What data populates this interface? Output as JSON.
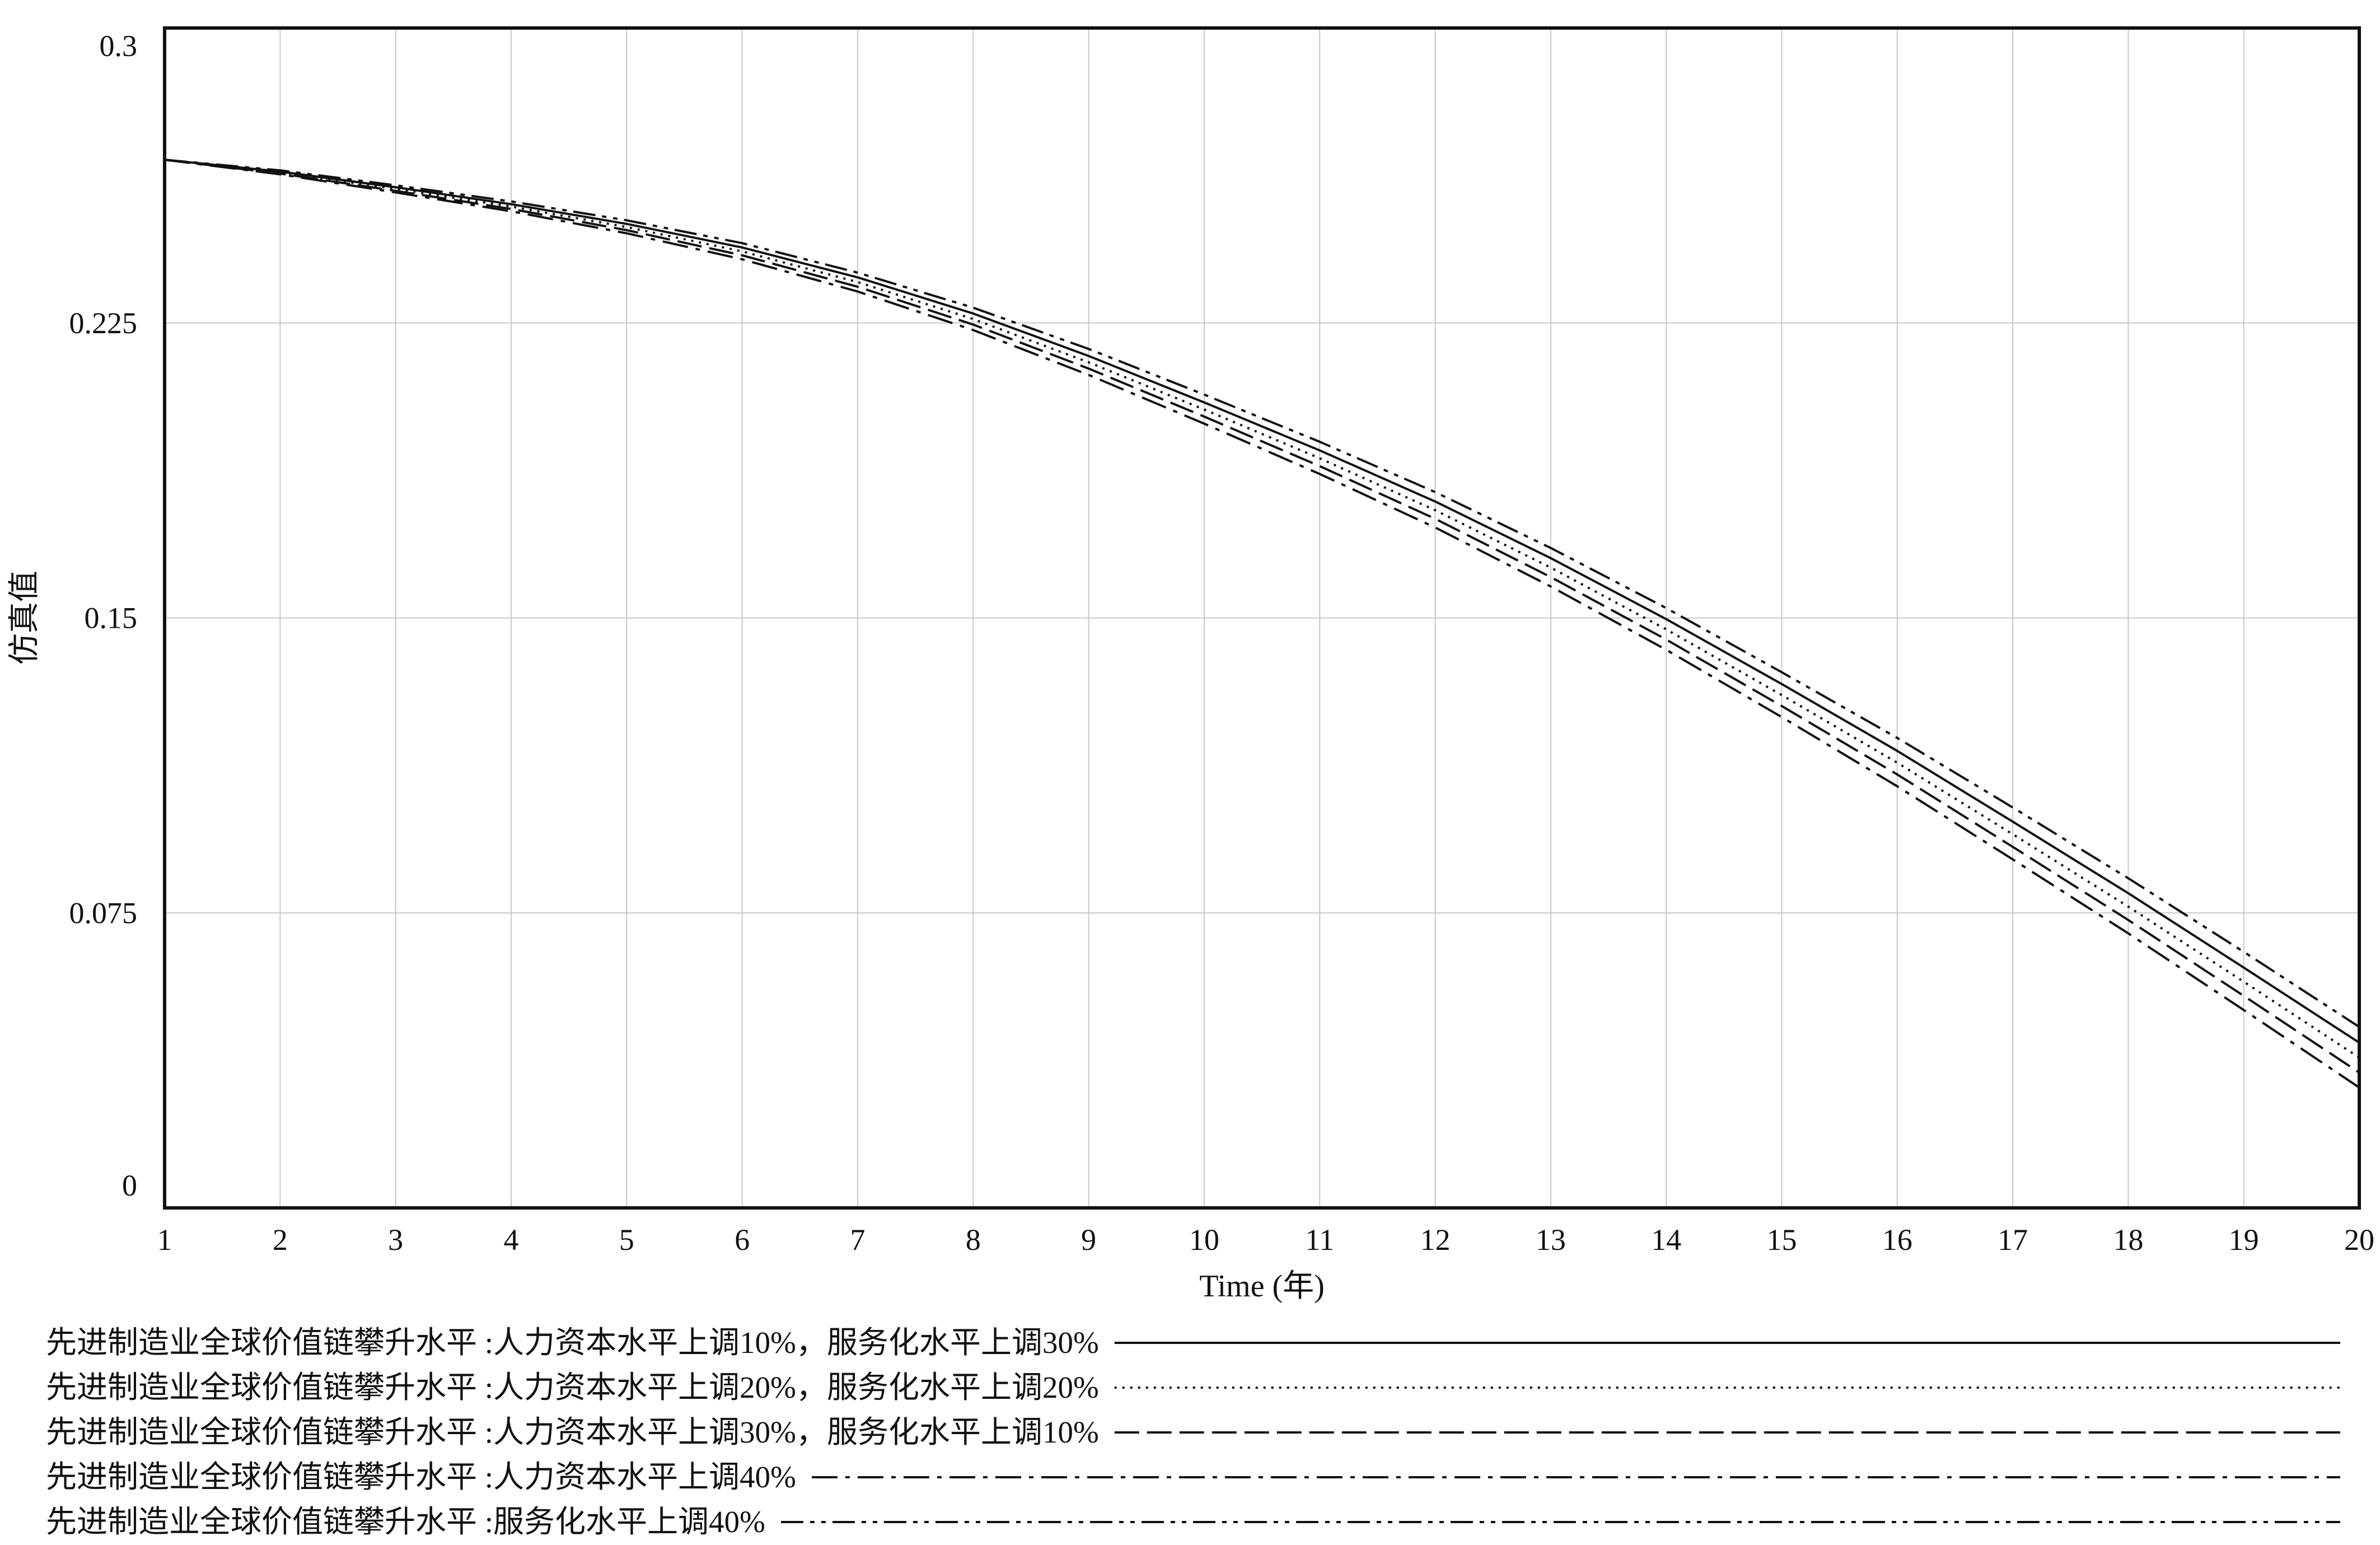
{
  "chart_data": {
    "type": "line",
    "title": "",
    "xlabel": "Time (年)",
    "ylabel": "仿真值",
    "xlim": [
      1,
      20
    ],
    "ylim": [
      0,
      0.3
    ],
    "x_ticks": [
      "1",
      "2",
      "3",
      "4",
      "5",
      "6",
      "7",
      "8",
      "9",
      "10",
      "11",
      "12",
      "13",
      "14",
      "15",
      "16",
      "17",
      "18",
      "19",
      "20"
    ],
    "y_ticks": [
      "0",
      "0.075",
      "0.15",
      "0.225",
      "0.3"
    ],
    "grid": true,
    "legend_position": "bottom",
    "x": [
      1,
      2,
      3,
      4,
      5,
      6,
      7,
      8,
      9,
      10,
      11,
      12,
      13,
      14,
      15,
      16,
      17,
      18,
      19,
      20
    ],
    "series": [
      {
        "name": "先进制造业全球价值链攀升水平 :人力资本水平上调10%，服务化水平上调30%",
        "style": "solid",
        "values": [
          0.2665,
          0.2635,
          0.2595,
          0.2552,
          0.2502,
          0.2442,
          0.2366,
          0.2274,
          0.2166,
          0.2048,
          0.1926,
          0.1796,
          0.1652,
          0.1497,
          0.1332,
          0.1162,
          0.0982,
          0.08,
          0.0611,
          0.042
        ]
      },
      {
        "name": "先进制造业全球价值链攀升水平 :人力资本水平上调20%，服务化水平上调20%",
        "style": "dotted",
        "values": [
          0.2665,
          0.2632,
          0.2591,
          0.2546,
          0.2494,
          0.2432,
          0.2354,
          0.226,
          0.215,
          0.203,
          0.1906,
          0.1774,
          0.1628,
          0.1471,
          0.1304,
          0.1132,
          0.095,
          0.0766,
          0.0575,
          0.0382
        ]
      },
      {
        "name": "先进制造业全球价值链攀升水平 :人力资本水平上调30%，服务化水平上调10%",
        "style": "dashed",
        "values": [
          0.2665,
          0.263,
          0.2586,
          0.254,
          0.2486,
          0.2422,
          0.2342,
          0.2246,
          0.2134,
          0.2012,
          0.1886,
          0.1752,
          0.1604,
          0.1445,
          0.1276,
          0.1102,
          0.0918,
          0.0732,
          0.0539,
          0.0344
        ]
      },
      {
        "name": "先进制造业全球价值链攀升水平 :人力资本水平上调40%",
        "style": "dashdot",
        "values": [
          0.2665,
          0.2628,
          0.2582,
          0.2534,
          0.2478,
          0.2412,
          0.233,
          0.2232,
          0.2118,
          0.1994,
          0.1866,
          0.173,
          0.158,
          0.1419,
          0.1248,
          0.1072,
          0.0886,
          0.0698,
          0.0503,
          0.0306
        ]
      },
      {
        "name": "先进制造业全球价值链攀升水平 :服务化水平上调40%",
        "style": "dashdotdot",
        "values": [
          0.2665,
          0.2638,
          0.26,
          0.2559,
          0.2511,
          0.2453,
          0.2378,
          0.2289,
          0.2184,
          0.2068,
          0.1948,
          0.182,
          0.1678,
          0.1525,
          0.1362,
          0.1195,
          0.1018,
          0.0838,
          0.0651,
          0.046
        ]
      }
    ],
    "colors": {
      "line": "#111111",
      "grid": "#c8c8c8",
      "frame": "#111111"
    }
  }
}
